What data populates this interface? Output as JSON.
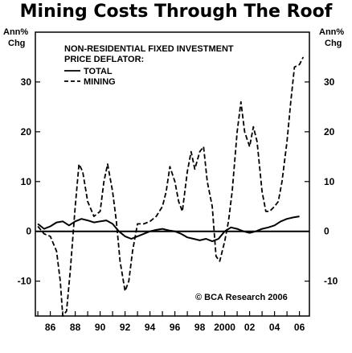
{
  "chart_data": {
    "type": "line",
    "title": "Mining Costs Through The Roof",
    "ylabel_left_line1": "Ann%",
    "ylabel_left_line2": "Chg",
    "ylabel_right_line1": "Ann%",
    "ylabel_right_line2": "Chg",
    "legend_title_line1": "NON-RESIDENTIAL FIXED INVESTMENT",
    "legend_title_line2": "PRICE DEFLATOR:",
    "legend_placement": "top-left",
    "annotation": "© BCA Research 2006",
    "ylim": [
      -17,
      40
    ],
    "yticks": [
      -10,
      0,
      10,
      20,
      30
    ],
    "xlim": [
      1984.8,
      2006.8
    ],
    "xticks": [
      1986,
      1988,
      1990,
      1992,
      1994,
      1996,
      1998,
      2000,
      2002,
      2004,
      2006
    ],
    "xtick_labels": [
      "86",
      "88",
      "90",
      "92",
      "94",
      "96",
      "98",
      "2000",
      "02",
      "04",
      "06"
    ],
    "grid": false,
    "series": [
      {
        "name": "TOTAL",
        "style": "solid",
        "x": [
          1985.0,
          1985.5,
          1986.0,
          1986.5,
          1987.0,
          1987.5,
          1988.0,
          1988.5,
          1989.0,
          1989.5,
          1990.0,
          1990.5,
          1991.0,
          1991.5,
          1992.0,
          1992.5,
          1993.0,
          1993.5,
          1994.0,
          1994.5,
          1995.0,
          1995.5,
          1996.0,
          1996.5,
          1997.0,
          1997.5,
          1998.0,
          1998.5,
          1999.0,
          1999.5,
          2000.0,
          2000.5,
          2001.0,
          2001.5,
          2002.0,
          2002.5,
          2003.0,
          2003.5,
          2004.0,
          2004.5,
          2005.0,
          2005.5,
          2006.0
        ],
        "values": [
          1.5,
          0.5,
          1.0,
          1.8,
          2.0,
          1.2,
          2.0,
          2.5,
          2.2,
          1.8,
          2.0,
          2.2,
          1.5,
          0.0,
          -1.0,
          -1.5,
          -1.0,
          -0.5,
          0.0,
          0.3,
          0.5,
          0.2,
          0.0,
          -0.5,
          -1.2,
          -1.5,
          -1.8,
          -1.5,
          -2.0,
          -1.5,
          0.0,
          0.8,
          0.5,
          0.0,
          -0.3,
          0.0,
          0.5,
          0.8,
          1.2,
          2.0,
          2.5,
          2.8,
          3.0
        ]
      },
      {
        "name": "MINING",
        "style": "dashed",
        "x": [
          1985.0,
          1985.5,
          1986.0,
          1986.5,
          1986.8,
          1987.0,
          1987.3,
          1987.6,
          1988.0,
          1988.3,
          1988.6,
          1989.0,
          1989.5,
          1990.0,
          1990.3,
          1990.6,
          1991.0,
          1991.3,
          1991.6,
          1992.0,
          1992.3,
          1992.6,
          1993.0,
          1993.5,
          1994.0,
          1994.5,
          1995.0,
          1995.3,
          1995.6,
          1996.0,
          1996.3,
          1996.6,
          1997.0,
          1997.3,
          1997.6,
          1998.0,
          1998.3,
          1998.6,
          1999.0,
          1999.3,
          1999.6,
          2000.0,
          2000.3,
          2000.6,
          2001.0,
          2001.3,
          2001.6,
          2002.0,
          2002.3,
          2002.6,
          2003.0,
          2003.3,
          2003.6,
          2004.0,
          2004.3,
          2004.6,
          2005.0,
          2005.3,
          2005.6,
          2006.0,
          2006.3
        ],
        "values": [
          1.0,
          -0.5,
          -1.0,
          -4.0,
          -10.0,
          -17.0,
          -16.0,
          -8.0,
          5.0,
          13.5,
          12.0,
          6.0,
          3.0,
          4.0,
          10.0,
          13.5,
          8.0,
          2.0,
          -6.0,
          -12.0,
          -10.0,
          -4.0,
          1.5,
          1.5,
          2.0,
          3.0,
          5.0,
          8.0,
          13.0,
          10.0,
          6.0,
          4.0,
          12.0,
          16.0,
          12.5,
          16.0,
          17.0,
          10.0,
          5.0,
          -5.0,
          -6.0,
          -2.0,
          2.0,
          8.0,
          20.0,
          26.0,
          20.0,
          17.0,
          21.0,
          18.0,
          8.0,
          4.0,
          4.0,
          5.0,
          6.0,
          10.0,
          18.0,
          26.0,
          33.0,
          33.5,
          35.0
        ]
      }
    ]
  }
}
